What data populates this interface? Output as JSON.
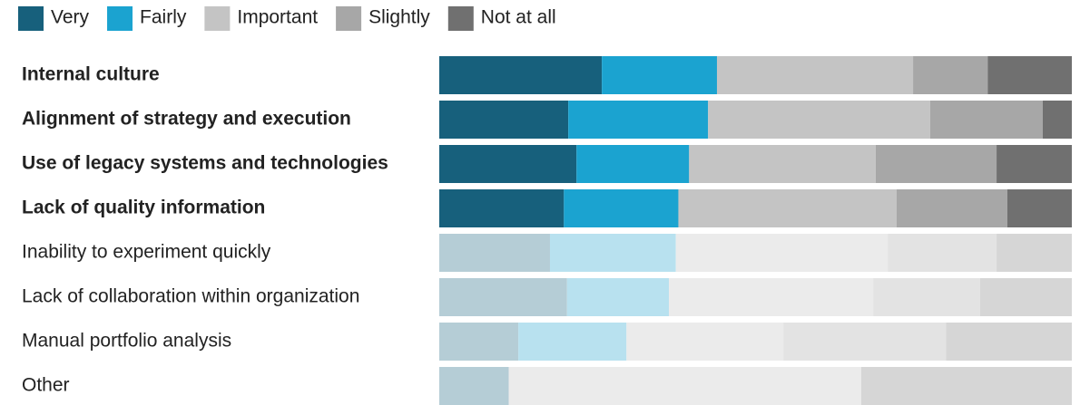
{
  "chart_data": {
    "type": "stacked_bar_100",
    "categories": [
      "Internal culture",
      "Alignment of strategy and execution",
      "Use of legacy systems and technologies",
      "Lack of quality information",
      "Inability to experiment quickly",
      "Lack of collaboration within organization",
      "Manual portfolio analysis",
      "Other"
    ],
    "highlighted": [
      true,
      true,
      true,
      true,
      false,
      false,
      false,
      false
    ],
    "xlim": [
      0,
      100
    ],
    "series": [
      {
        "name": "Very",
        "color": "#17607c",
        "faded_color": "#b5cdd6",
        "values": [
          25.7,
          20.4,
          21.7,
          19.7,
          17.5,
          20.2,
          12.5,
          11.0
        ]
      },
      {
        "name": "Fairly",
        "color": "#1ba3d0",
        "faded_color": "#b8e1ef",
        "values": [
          18.2,
          22.1,
          17.8,
          18.1,
          19.9,
          16.1,
          17.1,
          0
        ]
      },
      {
        "name": "Important",
        "color": "#c4c4c4",
        "faded_color": "#ebebeb",
        "values": [
          31.0,
          35.1,
          29.5,
          34.5,
          33.5,
          32.3,
          24.8,
          55.7
        ]
      },
      {
        "name": "Slightly",
        "color": "#a7a7a7",
        "faded_color": "#e3e3e3",
        "values": [
          11.8,
          17.8,
          19.1,
          17.5,
          17.2,
          16.9,
          25.7,
          0
        ]
      },
      {
        "name": "Not at all",
        "color": "#707070",
        "faded_color": "#d6d6d6",
        "values": [
          13.3,
          4.6,
          11.9,
          10.2,
          11.9,
          14.5,
          19.9,
          33.3
        ]
      }
    ]
  }
}
